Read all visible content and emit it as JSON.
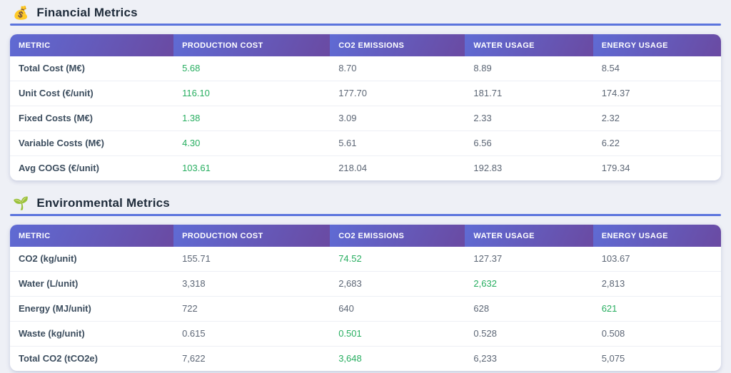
{
  "colors": {
    "page_background": "#eef0f6",
    "accent_divider_blue": "#5b74dd",
    "header_gradient_start": "#5f6bd4",
    "header_gradient_end": "#6a4aa2",
    "best_value_green": "#27ae60",
    "metric_label_color": "#3c4d5e",
    "value_color": "#5c6675"
  },
  "columns": [
    "METRIC",
    "PRODUCTION COST",
    "CO2 EMISSIONS",
    "WATER USAGE",
    "ENERGY USAGE"
  ],
  "financial": {
    "icon": "💰",
    "title": "Financial Metrics",
    "rows": [
      {
        "metric": "Total Cost (M€)",
        "values": [
          "5.68",
          "8.70",
          "8.89",
          "8.54"
        ],
        "best": 0
      },
      {
        "metric": "Unit Cost (€/unit)",
        "values": [
          "116.10",
          "177.70",
          "181.71",
          "174.37"
        ],
        "best": 0
      },
      {
        "metric": "Fixed Costs (M€)",
        "values": [
          "1.38",
          "3.09",
          "2.33",
          "2.32"
        ],
        "best": 0
      },
      {
        "metric": "Variable Costs (M€)",
        "values": [
          "4.30",
          "5.61",
          "6.56",
          "6.22"
        ],
        "best": 0
      },
      {
        "metric": "Avg COGS (€/unit)",
        "values": [
          "103.61",
          "218.04",
          "192.83",
          "179.34"
        ],
        "best": 0
      }
    ]
  },
  "environmental": {
    "icon": "🌱",
    "title": "Environmental Metrics",
    "rows": [
      {
        "metric": "CO2 (kg/unit)",
        "values": [
          "155.71",
          "74.52",
          "127.37",
          "103.67"
        ],
        "best": 1
      },
      {
        "metric": "Water (L/unit)",
        "values": [
          "3,318",
          "2,683",
          "2,632",
          "2,813"
        ],
        "best": 2
      },
      {
        "metric": "Energy (MJ/unit)",
        "values": [
          "722",
          "640",
          "628",
          "621"
        ],
        "best": 3
      },
      {
        "metric": "Waste (kg/unit)",
        "values": [
          "0.615",
          "0.501",
          "0.528",
          "0.508"
        ],
        "best": 1
      },
      {
        "metric": "Total CO2 (tCO2e)",
        "values": [
          "7,622",
          "3,648",
          "6,233",
          "5,075"
        ],
        "best": 1
      }
    ]
  }
}
